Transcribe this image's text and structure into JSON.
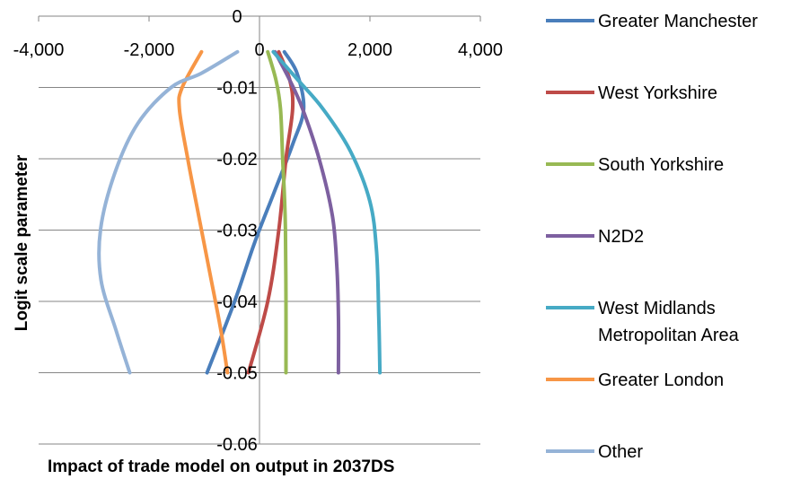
{
  "chart_data": {
    "type": "line",
    "title": "",
    "xlabel": "Impact of trade model on output in 2037DS",
    "ylabel": "Logit scale parameter",
    "xlim": [
      -4000,
      4000
    ],
    "ylim": [
      -0.06,
      0
    ],
    "x_ticks": [
      "-4,000",
      "-2,000",
      "0",
      "2,000",
      "4,000"
    ],
    "x_tick_values": [
      -4000,
      -2000,
      0,
      2000,
      4000
    ],
    "y_ticks": [
      "0",
      "-0.01",
      "-0.02",
      "-0.03",
      "-0.04",
      "-0.05",
      "-0.06"
    ],
    "y_tick_values": [
      0,
      -0.01,
      -0.02,
      -0.03,
      -0.04,
      -0.05,
      -0.06
    ],
    "grid": "horizontal",
    "legend_position": "right",
    "series": [
      {
        "name": "Greater Manchester",
        "color": "#4A7EBB",
        "x": [
          450,
          680,
          800,
          600,
          250,
          -100,
          -450,
          -950
        ],
        "y": [
          -0.005,
          -0.008,
          -0.013,
          -0.018,
          -0.025,
          -0.032,
          -0.04,
          -0.05
        ]
      },
      {
        "name": "West Yorkshire",
        "color": "#BE4B48",
        "x": [
          350,
          550,
          600,
          480,
          350,
          150,
          -200
        ],
        "y": [
          -0.005,
          -0.009,
          -0.013,
          -0.02,
          -0.03,
          -0.04,
          -0.05
        ]
      },
      {
        "name": "South Yorkshire",
        "color": "#98B954",
        "x": [
          150,
          300,
          380,
          420,
          450,
          470,
          480,
          480
        ],
        "y": [
          -0.005,
          -0.009,
          -0.013,
          -0.02,
          -0.025,
          -0.03,
          -0.04,
          -0.05
        ]
      },
      {
        "name": "N2D2",
        "color": "#7D60A0",
        "x": [
          280,
          550,
          780,
          1080,
          1320,
          1400,
          1430,
          1430
        ],
        "y": [
          -0.005,
          -0.009,
          -0.013,
          -0.02,
          -0.028,
          -0.035,
          -0.042,
          -0.05
        ]
      },
      {
        "name": "West Midlands Metropolitan Area",
        "color": "#46AAC5",
        "x": [
          250,
          700,
          1150,
          1650,
          2000,
          2120,
          2160,
          2180
        ],
        "y": [
          -0.005,
          -0.009,
          -0.013,
          -0.019,
          -0.026,
          -0.033,
          -0.042,
          -0.05
        ]
      },
      {
        "name": "Greater London",
        "color": "#F79646",
        "x": [
          -1050,
          -1400,
          -1450,
          -1300,
          -1100,
          -900,
          -700,
          -580
        ],
        "y": [
          -0.005,
          -0.01,
          -0.013,
          -0.02,
          -0.028,
          -0.036,
          -0.044,
          -0.05
        ]
      },
      {
        "name": "Other",
        "color": "#95B3D7",
        "x": [
          -400,
          -1050,
          -1600,
          -2200,
          -2620,
          -2880,
          -2870,
          -2600,
          -2350
        ],
        "y": [
          -0.005,
          -0.008,
          -0.01,
          -0.015,
          -0.022,
          -0.03,
          -0.037,
          -0.044,
          -0.05
        ]
      }
    ],
    "legend_labels": [
      [
        "Greater Manchester"
      ],
      [
        "West Yorkshire"
      ],
      [
        "South Yorkshire"
      ],
      [
        "N2D2"
      ],
      [
        "West Midlands",
        "Metropolitan Area"
      ],
      [
        "Greater London"
      ],
      [
        "Other"
      ]
    ]
  }
}
